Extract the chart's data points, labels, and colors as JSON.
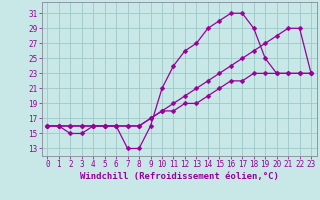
{
  "background_color": "#c8e8e8",
  "grid_color": "#a0c8c8",
  "line_color": "#990099",
  "marker": "D",
  "markersize": 2.5,
  "linewidth": 0.9,
  "xlabel": "Windchill (Refroidissement éolien,°C)",
  "xlabel_fontsize": 6.5,
  "tick_fontsize": 5.5,
  "xlim": [
    -0.5,
    23.5
  ],
  "ylim": [
    12.0,
    32.5
  ],
  "yticks": [
    13,
    15,
    17,
    19,
    21,
    23,
    25,
    27,
    29,
    31
  ],
  "xticks": [
    0,
    1,
    2,
    3,
    4,
    5,
    6,
    7,
    8,
    9,
    10,
    11,
    12,
    13,
    14,
    15,
    16,
    17,
    18,
    19,
    20,
    21,
    22,
    23
  ],
  "lines": [
    {
      "x": [
        0,
        1,
        2,
        3,
        4,
        5,
        6,
        7,
        8,
        9,
        10,
        11,
        12,
        13,
        14,
        15,
        16,
        17,
        18,
        19,
        20,
        21,
        22,
        23
      ],
      "y": [
        16,
        16,
        15,
        15,
        16,
        16,
        16,
        13,
        13,
        16,
        21,
        24,
        26,
        27,
        29,
        30,
        31,
        31,
        29,
        25,
        23,
        23,
        23,
        23
      ]
    },
    {
      "x": [
        0,
        1,
        2,
        3,
        4,
        5,
        6,
        7,
        8,
        9,
        10,
        11,
        12,
        13,
        14,
        15,
        16,
        17,
        18,
        19,
        20,
        21,
        22,
        23
      ],
      "y": [
        16,
        16,
        16,
        16,
        16,
        16,
        16,
        16,
        16,
        17,
        18,
        18,
        19,
        19,
        20,
        21,
        22,
        22,
        23,
        23,
        23,
        23,
        23,
        23
      ]
    },
    {
      "x": [
        0,
        1,
        2,
        3,
        4,
        5,
        6,
        7,
        8,
        9,
        10,
        11,
        12,
        13,
        14,
        15,
        16,
        17,
        18,
        19,
        20,
        21,
        22,
        23
      ],
      "y": [
        16,
        16,
        16,
        16,
        16,
        16,
        16,
        16,
        16,
        17,
        18,
        19,
        20,
        21,
        22,
        23,
        24,
        25,
        26,
        27,
        28,
        29,
        29,
        23
      ]
    }
  ]
}
